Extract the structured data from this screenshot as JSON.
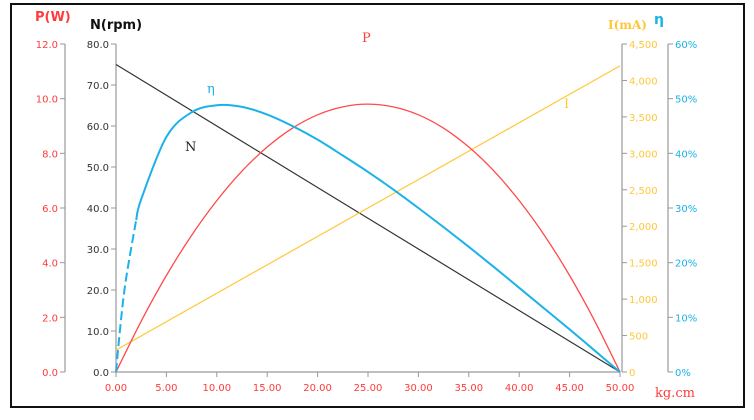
{
  "chart_data": {
    "type": "line",
    "xlabel": "kg.cm",
    "xlim": [
      0,
      50
    ],
    "x_ticks": [
      "0.00",
      "5.00",
      "10.00",
      "15.00",
      "20.00",
      "25.00",
      "30.00",
      "35.00",
      "40.00",
      "45.00",
      "50.00"
    ],
    "axes": [
      {
        "id": "P",
        "title": "P(W)",
        "side": "left-outer",
        "range": [
          0,
          12
        ],
        "ticks": [
          "0.0",
          "2.0",
          "4.0",
          "6.0",
          "8.0",
          "10.0",
          "12.0"
        ],
        "color": "#ff3b3b"
      },
      {
        "id": "N",
        "title": "N(rpm)",
        "side": "left-inner",
        "range": [
          0,
          80
        ],
        "ticks": [
          "0.0",
          "10.0",
          "20.0",
          "30.0",
          "40.0",
          "50.0",
          "60.0",
          "70.0",
          "80.0"
        ],
        "color": "#222222"
      },
      {
        "id": "I",
        "title": "I(mA)",
        "side": "right-inner",
        "range": [
          0,
          4500
        ],
        "ticks": [
          "0",
          "500",
          "1,000",
          "1,500",
          "2,000",
          "2,500",
          "3,000",
          "3,500",
          "4,000",
          "4,500"
        ],
        "color": "#ffc83a"
      },
      {
        "id": "eta",
        "title": "η",
        "side": "right-outer",
        "range": [
          0,
          60
        ],
        "ticks": [
          "0%",
          "10%",
          "20%",
          "30%",
          "40%",
          "50%",
          "60%"
        ],
        "color": "#1ab2e8"
      }
    ],
    "series": [
      {
        "name": "N",
        "axis": "N",
        "color": "#333333",
        "x": [
          0,
          50
        ],
        "y": [
          75,
          0
        ]
      },
      {
        "name": "I",
        "axis": "I",
        "color": "#ffc83a",
        "x": [
          0,
          50
        ],
        "y": [
          300,
          4200
        ]
      },
      {
        "name": "P",
        "axis": "P",
        "color": "#ff4a4a",
        "x": [
          0,
          2.5,
          5,
          7.5,
          10,
          12.5,
          15,
          17.5,
          20,
          22.5,
          25,
          27.5,
          30,
          32.5,
          35,
          37.5,
          40,
          42.5,
          45,
          47.5,
          50
        ],
        "y": [
          0,
          1.86,
          3.53,
          5.0,
          6.27,
          7.35,
          8.23,
          8.92,
          9.41,
          9.7,
          9.8,
          9.7,
          9.41,
          8.92,
          8.23,
          7.35,
          6.27,
          5.0,
          3.53,
          1.86,
          0
        ]
      },
      {
        "name": "η",
        "axis": "eta",
        "color": "#1ab2e8",
        "x": [
          0,
          0.5,
          1,
          2,
          2.5,
          5,
          7.5,
          10,
          12.5,
          15,
          17.5,
          20,
          22.5,
          25,
          27.5,
          30,
          32.5,
          35,
          37.5,
          40,
          42.5,
          45,
          47.5,
          50
        ],
        "y": [
          0,
          9.6,
          17.1,
          27.8,
          31.6,
          43.0,
          47.5,
          48.8,
          48.5,
          47.1,
          45.0,
          42.5,
          39.6,
          36.6,
          33.4,
          30.0,
          26.5,
          22.9,
          19.2,
          15.4,
          11.6,
          7.8,
          3.9,
          0
        ]
      }
    ],
    "legend_labels": [
      "P",
      "η",
      "N",
      "I"
    ],
    "grid": false
  }
}
